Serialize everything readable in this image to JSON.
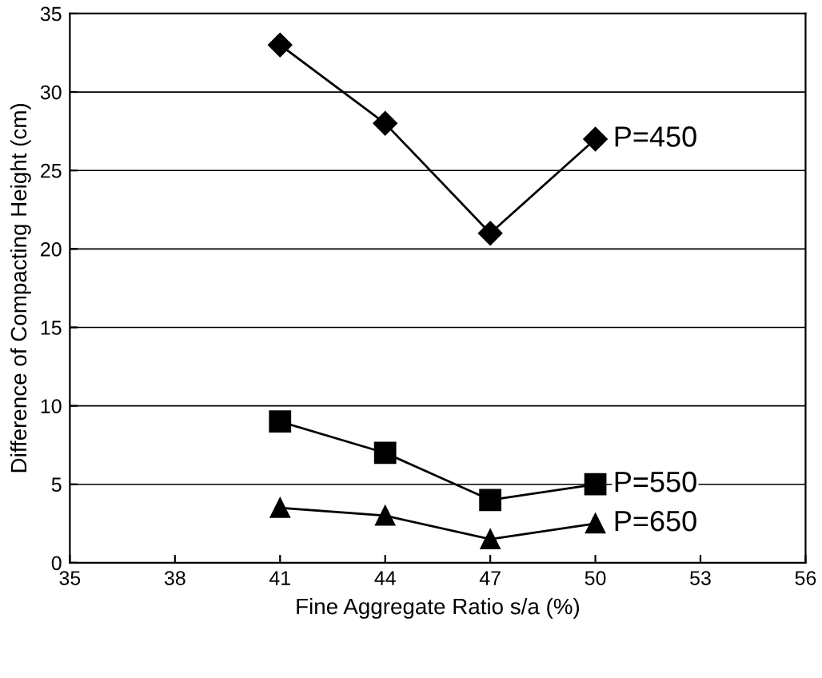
{
  "chart_data": {
    "type": "line",
    "xlabel": "Fine Aggregate Ratio s/a (%)",
    "ylabel": "Difference of Compacting Height (cm)",
    "x": [
      41,
      44,
      47,
      50
    ],
    "series": [
      {
        "name": "P=450",
        "color": "#000000",
        "marker": "diamond",
        "values": [
          33,
          28,
          21,
          27
        ]
      },
      {
        "name": "P=550",
        "color": "#000000",
        "marker": "square",
        "values": [
          9,
          7,
          4,
          5
        ]
      },
      {
        "name": "P=650",
        "color": "#000000",
        "marker": "triangle",
        "values": [
          3.5,
          3,
          1.5,
          2.5
        ]
      }
    ],
    "xlim": [
      35,
      56
    ],
    "xticks": [
      35,
      38,
      41,
      44,
      47,
      50,
      53,
      56
    ],
    "ylim": [
      0,
      35
    ],
    "yticks": [
      0,
      5,
      10,
      15,
      20,
      25,
      30,
      35
    ],
    "grid": "y",
    "line_style": "solid",
    "legend": false
  }
}
